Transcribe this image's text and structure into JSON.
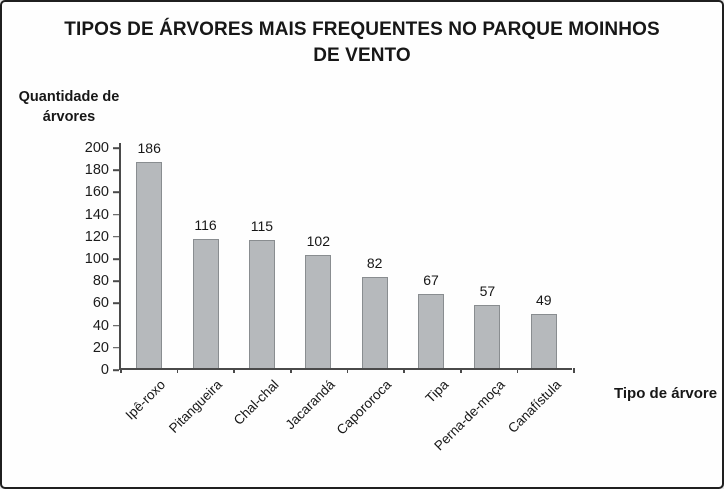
{
  "page": {
    "background": "#fefefe",
    "frame_border_color": "#1f1f1f"
  },
  "chart_data": {
    "type": "bar",
    "title": "TIPOS DE ÁRVORES MAIS FREQUENTES NO PARQUE MOINHOS DE VENTO",
    "ylabel": "Quantidade de árvores",
    "xlabel": "Tipo de árvore",
    "categories": [
      "Ipê-roxo",
      "Pitangueira",
      "Chal-chal",
      "Jacarandá",
      "Capororoca",
      "Tipa",
      "Perna-de-moça",
      "Canafístula"
    ],
    "values": [
      186,
      116,
      115,
      102,
      82,
      67,
      57,
      49
    ],
    "ylim": [
      0,
      200
    ],
    "ytick_step": 20,
    "yticks": [
      0,
      20,
      40,
      60,
      80,
      100,
      120,
      140,
      160,
      180,
      200
    ],
    "grid": false,
    "legend": false,
    "data_labels": true,
    "bar_fill_color": "#b6b9bc",
    "bar_border_color": "#898d90",
    "axis_color": "#4a4a4a"
  }
}
